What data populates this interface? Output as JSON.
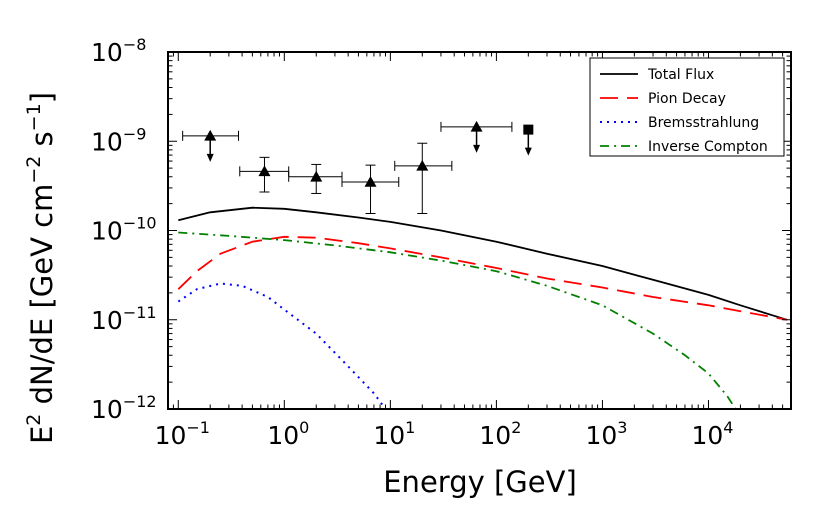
{
  "chart_data": {
    "type": "line",
    "xlabel": "Energy [GeV]",
    "ylabel": {
      "parts": [
        "E",
        "2",
        " dN/dE [GeV cm",
        "−2",
        " s",
        "−1",
        "]"
      ]
    },
    "x_scale": "log",
    "y_scale": "log",
    "xlim": [
      0.08,
      60000
    ],
    "ylim": [
      1e-12,
      1e-08
    ],
    "x_ticks": [
      {
        "value": 0.1,
        "base": "10",
        "exp": "−1"
      },
      {
        "value": 1,
        "base": "10",
        "exp": "0"
      },
      {
        "value": 10,
        "base": "10",
        "exp": "1"
      },
      {
        "value": 100,
        "base": "10",
        "exp": "2"
      },
      {
        "value": 1000,
        "base": "10",
        "exp": "3"
      },
      {
        "value": 10000,
        "base": "10",
        "exp": "4"
      }
    ],
    "y_ticks": [
      {
        "value": 1e-12,
        "base": "10",
        "exp": "−12"
      },
      {
        "value": 1e-11,
        "base": "10",
        "exp": "−11"
      },
      {
        "value": 1e-10,
        "base": "10",
        "exp": "−10"
      },
      {
        "value": 1e-09,
        "base": "10",
        "exp": "−9"
      },
      {
        "value": 1e-08,
        "base": "10",
        "exp": "−8"
      }
    ],
    "grid": false,
    "legend_position": "top-right",
    "series": [
      {
        "name": "Total Flux",
        "color": "#000000",
        "dash": "solid",
        "points": [
          [
            0.1,
            1.3e-10
          ],
          [
            0.2,
            1.6e-10
          ],
          [
            0.5,
            1.8e-10
          ],
          [
            1,
            1.75e-10
          ],
          [
            2,
            1.6e-10
          ],
          [
            5,
            1.4e-10
          ],
          [
            10,
            1.25e-10
          ],
          [
            30,
            1e-10
          ],
          [
            100,
            7.5e-11
          ],
          [
            300,
            5.5e-11
          ],
          [
            1000,
            4e-11
          ],
          [
            3000,
            2.8e-11
          ],
          [
            10000,
            1.9e-11
          ],
          [
            20000,
            1.45e-11
          ],
          [
            55000,
            1e-11
          ]
        ]
      },
      {
        "name": "Pion Decay",
        "color": "#ff0000",
        "dash": "long-dash",
        "points": [
          [
            0.1,
            2.2e-11
          ],
          [
            0.15,
            3.5e-11
          ],
          [
            0.25,
            5.5e-11
          ],
          [
            0.5,
            7.5e-11
          ],
          [
            1,
            8.5e-11
          ],
          [
            2,
            8.3e-11
          ],
          [
            5,
            7.2e-11
          ],
          [
            10,
            6.3e-11
          ],
          [
            30,
            5e-11
          ],
          [
            100,
            3.8e-11
          ],
          [
            300,
            2.9e-11
          ],
          [
            1000,
            2.3e-11
          ],
          [
            3000,
            1.8e-11
          ],
          [
            10000,
            1.45e-11
          ],
          [
            55000,
            1e-11
          ]
        ]
      },
      {
        "name": "Bremsstrahlung",
        "color": "#0000ff",
        "dash": "dotted",
        "points": [
          [
            0.1,
            1.6e-11
          ],
          [
            0.15,
            2.2e-11
          ],
          [
            0.25,
            2.55e-11
          ],
          [
            0.4,
            2.4e-11
          ],
          [
            0.7,
            1.8e-11
          ],
          [
            1,
            1.3e-11
          ],
          [
            2,
            7e-12
          ],
          [
            4,
            3e-12
          ],
          [
            7,
            1.5e-12
          ],
          [
            9,
            1e-12
          ]
        ]
      },
      {
        "name": "Inverse Compton",
        "color": "#008000",
        "dash": "dash-dot",
        "points": [
          [
            0.1,
            9.5e-11
          ],
          [
            0.3,
            8.7e-11
          ],
          [
            1,
            7.8e-11
          ],
          [
            3,
            6.8e-11
          ],
          [
            10,
            5.7e-11
          ],
          [
            30,
            4.6e-11
          ],
          [
            100,
            3.5e-11
          ],
          [
            300,
            2.4e-11
          ],
          [
            1000,
            1.45e-11
          ],
          [
            3000,
            7e-12
          ],
          [
            6000,
            4e-12
          ],
          [
            10000,
            2.5e-12
          ],
          [
            15000,
            1.4e-12
          ],
          [
            18000,
            1e-12
          ]
        ]
      }
    ],
    "upper_limits": [
      {
        "marker": "triangle",
        "x": 0.2,
        "y": 1.15e-09,
        "x_low": 0.11,
        "x_high": 0.37
      },
      {
        "marker": "triangle",
        "x": 65,
        "y": 1.45e-09,
        "x_low": 30,
        "x_high": 140
      },
      {
        "marker": "square",
        "x": 200,
        "y": 1.35e-09
      }
    ],
    "data_points": [
      {
        "x": 0.65,
        "y": 4.6e-10,
        "x_low": 0.38,
        "x_high": 1.1,
        "y_low": 2.7e-10,
        "y_high": 6.6e-10
      },
      {
        "x": 2,
        "y": 4e-10,
        "x_low": 1.1,
        "x_high": 3.5,
        "y_low": 2.6e-10,
        "y_high": 5.5e-10
      },
      {
        "x": 6.5,
        "y": 3.5e-10,
        "x_low": 3.5,
        "x_high": 12,
        "y_low": 1.55e-10,
        "y_high": 5.4e-10
      },
      {
        "x": 20,
        "y": 5.3e-10,
        "x_low": 11,
        "x_high": 38,
        "y_low": 1.55e-10,
        "y_high": 9.5e-10
      }
    ]
  }
}
